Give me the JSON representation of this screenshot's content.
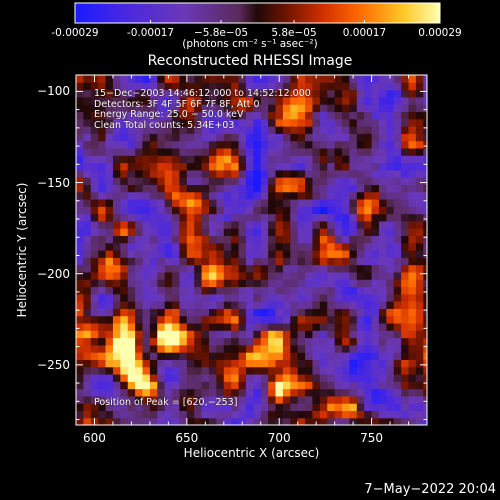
{
  "colorbar": {
    "ticks": [
      "-0.00029",
      "-0.00017",
      "−5.8e−05",
      "5.8e−05",
      "0.00017",
      "0.00029"
    ],
    "tick_values": [
      -0.00029,
      -0.00017,
      -5.8e-05,
      5.8e-05,
      0.00017,
      0.00029
    ],
    "range": [
      -0.00029,
      0.00029
    ],
    "unit_label": "(photons cm⁻² s⁻¹ asec⁻²)",
    "colors": [
      "#1a1aff",
      "#5a2ad0",
      "#7a3aa8",
      "#3a1010",
      "#b02a00",
      "#ff5a00",
      "#ffb21a",
      "#ffff80"
    ]
  },
  "chart_data": {
    "type": "heatmap",
    "title": "Reconstructed RHESSI Image",
    "xlabel": "Heliocentric X (arcsec)",
    "ylabel": "Heliocentric Y (arcsec)",
    "xlim": [
      590,
      780
    ],
    "ylim": [
      -283,
      -91
    ],
    "x_ticks": [
      600,
      650,
      700,
      750
    ],
    "y_ticks": [
      -100,
      -150,
      -200,
      -250
    ],
    "x_tick_labels": [
      "600",
      "650",
      "700",
      "750"
    ],
    "y_tick_labels": [
      "−100",
      "−150",
      "−200",
      "−250"
    ],
    "annotations": [
      "15−Dec−2003 14:46:12.000 to 14:52:12.000",
      "Detectors: 3F 4F 5F 6F 7F 8F, Att 0",
      "Energy Range: 25.0 − 50.0 keV",
      "Clean    Total counts: 5.34E+03"
    ],
    "peak_label": "Position of Peak = [620,−253]",
    "peak": [
      620,
      -253
    ],
    "hot_regions": [
      {
        "x": 620,
        "y": -253,
        "amp": 1.0
      },
      {
        "x": 652,
        "y": -160,
        "amp": 0.95
      },
      {
        "x": 617,
        "y": -237,
        "amp": 0.85
      },
      {
        "x": 640,
        "y": -235,
        "amp": 0.8
      },
      {
        "x": 675,
        "y": -248,
        "amp": 0.75
      },
      {
        "x": 693,
        "y": -237,
        "amp": 0.7
      },
      {
        "x": 630,
        "y": -270,
        "amp": 0.75
      },
      {
        "x": 700,
        "y": -270,
        "amp": 0.75
      },
      {
        "x": 668,
        "y": -140,
        "amp": 0.7
      },
      {
        "x": 678,
        "y": -107,
        "amp": 0.6
      },
      {
        "x": 712,
        "y": -108,
        "amp": 0.75
      },
      {
        "x": 726,
        "y": -133,
        "amp": 0.65
      },
      {
        "x": 613,
        "y": -197,
        "amp": 0.7
      },
      {
        "x": 660,
        "y": -205,
        "amp": 0.6
      },
      {
        "x": 597,
        "y": -234,
        "amp": 0.55
      },
      {
        "x": 765,
        "y": -255,
        "amp": 0.6
      },
      {
        "x": 768,
        "y": -210,
        "amp": 0.5
      },
      {
        "x": 740,
        "y": -275,
        "amp": 0.5
      },
      {
        "x": 735,
        "y": -193,
        "amp": 0.4
      },
      {
        "x": 745,
        "y": -160,
        "amp": 0.35
      },
      {
        "x": 700,
        "y": -200,
        "amp": 0.35
      }
    ]
  },
  "footer": {
    "timestamp": "7−May−2022 20:04"
  }
}
